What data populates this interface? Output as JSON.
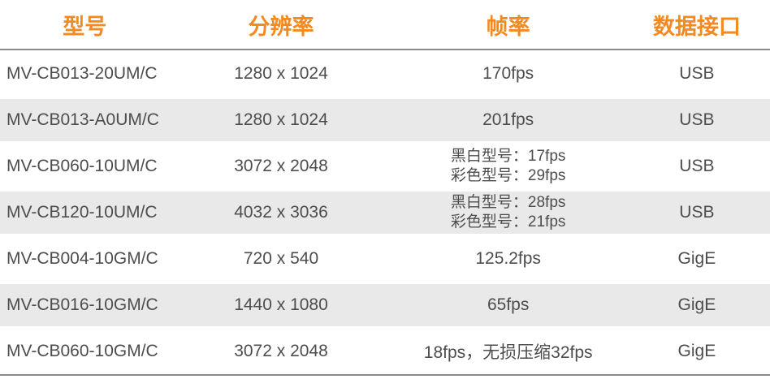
{
  "colors": {
    "accent": "#F28A21",
    "row_alt": "#E9E9E9",
    "text": "#4D4D4D",
    "line": "#8A8A8A"
  },
  "table": {
    "headers": [
      "型号",
      "分辨率",
      "帧率",
      "数据接口"
    ],
    "rows": [
      {
        "model": "MV-CB013-20UM/C",
        "resolution": "1280 x 1024",
        "fps": [
          "170fps"
        ],
        "interface": "USB"
      },
      {
        "model": "MV-CB013-A0UM/C",
        "resolution": "1280 x 1024",
        "fps": [
          "201fps"
        ],
        "interface": "USB"
      },
      {
        "model": "MV-CB060-10UM/C",
        "resolution": "3072 x 2048",
        "fps": [
          "黑白型号：17fps",
          "彩色型号：29fps"
        ],
        "interface": "USB"
      },
      {
        "model": "MV-CB120-10UM/C",
        "resolution": "4032 x 3036",
        "fps": [
          "黑白型号：28fps",
          "彩色型号：21fps"
        ],
        "interface": "USB"
      },
      {
        "model": "MV-CB004-10GM/C",
        "resolution": "720 x 540",
        "fps": [
          "125.2fps"
        ],
        "interface": "GigE"
      },
      {
        "model": "MV-CB016-10GM/C",
        "resolution": "1440 x 1080",
        "fps": [
          "65fps"
        ],
        "interface": "GigE"
      },
      {
        "model": "MV-CB060-10GM/C",
        "resolution": "3072 x 2048",
        "fps": [
          "18fps，无损压缩32fps"
        ],
        "interface": "GigE"
      }
    ]
  }
}
